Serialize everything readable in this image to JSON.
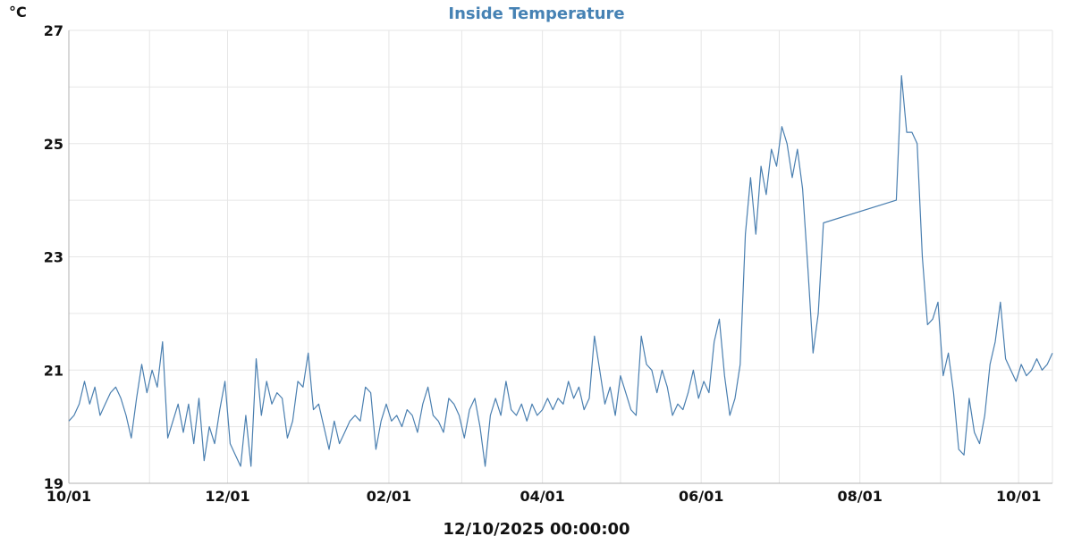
{
  "chart_data": {
    "type": "line",
    "title": "Inside Temperature",
    "ylabel": "°C",
    "xlabel": "12/10/2025 00:00:00",
    "ylim": [
      19,
      27
    ],
    "yticks": [
      19,
      21,
      23,
      25,
      27
    ],
    "xlim": [
      "2024-10-01",
      "2025-10-14"
    ],
    "xticks": [
      {
        "date": "2024-10-01",
        "label": "10/01"
      },
      {
        "date": "2024-12-01",
        "label": "12/01"
      },
      {
        "date": "2025-02-01",
        "label": "02/01"
      },
      {
        "date": "2025-04-01",
        "label": "04/01"
      },
      {
        "date": "2025-06-01",
        "label": "06/01"
      },
      {
        "date": "2025-08-01",
        "label": "08/01"
      },
      {
        "date": "2025-10-01",
        "label": "10/01"
      }
    ],
    "grid": true,
    "line_color": "#4a7fb0",
    "title_color": "#4682b4",
    "series": [
      {
        "x": [
          "2024-10-01",
          "2024-10-03",
          "2024-10-05",
          "2024-10-07",
          "2024-10-09",
          "2024-10-11",
          "2024-10-13",
          "2024-10-15",
          "2024-10-17",
          "2024-10-19",
          "2024-10-21",
          "2024-10-23",
          "2024-10-25",
          "2024-10-27",
          "2024-10-29",
          "2024-10-31",
          "2024-11-02",
          "2024-11-04",
          "2024-11-06",
          "2024-11-08",
          "2024-11-10",
          "2024-11-12",
          "2024-11-14",
          "2024-11-16",
          "2024-11-18",
          "2024-11-20",
          "2024-11-22",
          "2024-11-24",
          "2024-11-26",
          "2024-11-28",
          "2024-11-30",
          "2024-12-02",
          "2024-12-04",
          "2024-12-06",
          "2024-12-08",
          "2024-12-10",
          "2024-12-12",
          "2024-12-14",
          "2024-12-16",
          "2024-12-18",
          "2024-12-20",
          "2024-12-22",
          "2024-12-24",
          "2024-12-26",
          "2024-12-28",
          "2024-12-30",
          "2025-01-01",
          "2025-01-03",
          "2025-01-05",
          "2025-01-07",
          "2025-01-09",
          "2025-01-11",
          "2025-01-13",
          "2025-01-15",
          "2025-01-17",
          "2025-01-19",
          "2025-01-21",
          "2025-01-23",
          "2025-01-25",
          "2025-01-27",
          "2025-01-29",
          "2025-01-31",
          "2025-02-02",
          "2025-02-04",
          "2025-02-06",
          "2025-02-08",
          "2025-02-10",
          "2025-02-12",
          "2025-02-14",
          "2025-02-16",
          "2025-02-18",
          "2025-02-20",
          "2025-02-22",
          "2025-02-24",
          "2025-02-26",
          "2025-02-28",
          "2025-03-02",
          "2025-03-04",
          "2025-03-06",
          "2025-03-08",
          "2025-03-10",
          "2025-03-12",
          "2025-03-14",
          "2025-03-16",
          "2025-03-18",
          "2025-03-20",
          "2025-03-22",
          "2025-03-24",
          "2025-03-26",
          "2025-03-28",
          "2025-03-30",
          "2025-04-01",
          "2025-04-03",
          "2025-04-05",
          "2025-04-07",
          "2025-04-09",
          "2025-04-11",
          "2025-04-13",
          "2025-04-15",
          "2025-04-17",
          "2025-04-19",
          "2025-04-21",
          "2025-04-23",
          "2025-04-25",
          "2025-04-27",
          "2025-04-29",
          "2025-05-01",
          "2025-05-03",
          "2025-05-05",
          "2025-05-07",
          "2025-05-09",
          "2025-05-11",
          "2025-05-13",
          "2025-05-15",
          "2025-05-17",
          "2025-05-19",
          "2025-05-21",
          "2025-05-23",
          "2025-05-25",
          "2025-05-27",
          "2025-05-29",
          "2025-05-31",
          "2025-06-02",
          "2025-06-04",
          "2025-06-06",
          "2025-06-08",
          "2025-06-10",
          "2025-06-12",
          "2025-06-14",
          "2025-06-16",
          "2025-06-18",
          "2025-06-20",
          "2025-06-22",
          "2025-06-24",
          "2025-06-26",
          "2025-06-28",
          "2025-06-30",
          "2025-07-02",
          "2025-07-04",
          "2025-07-06",
          "2025-07-08",
          "2025-07-10",
          "2025-07-12",
          "2025-07-14",
          "2025-07-16",
          "2025-07-18",
          "2025-08-15",
          "2025-08-17",
          "2025-08-19",
          "2025-08-21",
          "2025-08-23",
          "2025-08-25",
          "2025-08-27",
          "2025-08-29",
          "2025-08-31",
          "2025-09-02",
          "2025-09-04",
          "2025-09-06",
          "2025-09-08",
          "2025-09-10",
          "2025-09-12",
          "2025-09-14",
          "2025-09-16",
          "2025-09-18",
          "2025-09-20",
          "2025-09-22",
          "2025-09-24",
          "2025-09-26",
          "2025-09-28",
          "2025-09-30",
          "2025-10-02",
          "2025-10-04",
          "2025-10-06",
          "2025-10-08",
          "2025-10-10",
          "2025-10-12",
          "2025-10-14"
        ],
        "y": [
          20.1,
          20.2,
          20.4,
          20.8,
          20.4,
          20.7,
          20.2,
          20.4,
          20.6,
          20.7,
          20.5,
          20.2,
          19.8,
          20.5,
          21.1,
          20.6,
          21.0,
          20.7,
          21.5,
          19.8,
          20.1,
          20.4,
          19.9,
          20.4,
          19.7,
          20.5,
          19.4,
          20.0,
          19.7,
          20.3,
          20.8,
          19.7,
          19.5,
          19.3,
          20.2,
          19.3,
          21.2,
          20.2,
          20.8,
          20.4,
          20.6,
          20.5,
          19.8,
          20.1,
          20.8,
          20.7,
          21.3,
          20.3,
          20.4,
          20.0,
          19.6,
          20.1,
          19.7,
          19.9,
          20.1,
          20.2,
          20.1,
          20.7,
          20.6,
          19.6,
          20.1,
          20.4,
          20.1,
          20.2,
          20.0,
          20.3,
          20.2,
          19.9,
          20.4,
          20.7,
          20.2,
          20.1,
          19.9,
          20.5,
          20.4,
          20.2,
          19.8,
          20.3,
          20.5,
          20.0,
          19.3,
          20.2,
          20.5,
          20.2,
          20.8,
          20.3,
          20.2,
          20.4,
          20.1,
          20.4,
          20.2,
          20.3,
          20.5,
          20.3,
          20.5,
          20.4,
          20.8,
          20.5,
          20.7,
          20.3,
          20.5,
          21.6,
          21.0,
          20.4,
          20.7,
          20.2,
          20.9,
          20.6,
          20.3,
          20.2,
          21.6,
          21.1,
          21.0,
          20.6,
          21.0,
          20.7,
          20.2,
          20.4,
          20.3,
          20.6,
          21.0,
          20.5,
          20.8,
          20.6,
          21.5,
          21.9,
          20.9,
          20.2,
          20.5,
          21.1,
          23.4,
          24.4,
          23.4,
          24.6,
          24.1,
          24.9,
          24.6,
          25.3,
          25.0,
          24.4,
          24.9,
          24.2,
          22.8,
          21.3,
          22.0,
          23.6,
          24.0,
          26.2,
          25.2,
          25.2,
          25.0,
          23.0,
          21.8,
          21.9,
          22.2,
          20.9,
          21.3,
          20.6,
          19.6,
          19.5,
          20.5,
          19.9,
          19.7,
          20.2,
          21.1,
          21.5,
          22.2,
          21.2,
          21.0,
          20.8,
          21.1,
          20.9,
          21.0,
          21.2,
          21.0,
          21.1,
          21.3
        ]
      }
    ]
  }
}
